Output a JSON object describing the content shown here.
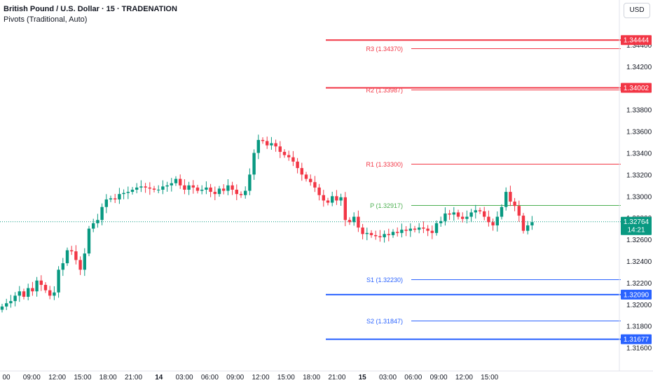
{
  "header": {
    "title": "British Pound / U.S. Dollar · 15 · TRADENATION",
    "indicator": "Pivots (Traditional, Auto)",
    "currency": "USD"
  },
  "colors": {
    "up": "#089981",
    "down": "#f23645",
    "resistance": "#f23645",
    "support": "#2962ff",
    "pivot": "#4caf50"
  },
  "chart_data": {
    "type": "candlestick",
    "instrument": "British Pound / U.S. Dollar",
    "interval": "15",
    "ylim": [
      1.315,
      1.3462
    ],
    "y_ticks": [
      "1.34400",
      "1.34200",
      "1.34000",
      "1.33800",
      "1.33600",
      "1.33400",
      "1.33200",
      "1.33000",
      "1.32800",
      "1.32600",
      "1.32400",
      "1.32200",
      "1.32000",
      "1.31800",
      "1.31600"
    ],
    "x_ticks": [
      "00",
      "09:00",
      "12:00",
      "15:00",
      "18:00",
      "21:00",
      "14",
      "03:00",
      "06:00",
      "09:00",
      "12:00",
      "15:00",
      "18:00",
      "21:00",
      "15",
      "03:00",
      "06:00",
      "09:00",
      "12:00",
      "15:00"
    ],
    "bold_ticks": [
      "14",
      "15"
    ],
    "pivots": [
      {
        "label": "R3",
        "value": "1.34370",
        "y": 1.3437,
        "kind": "resistance"
      },
      {
        "label": "R2",
        "value": "1.33987",
        "y": 1.33987,
        "kind": "resistance"
      },
      {
        "label": "R1",
        "value": "1.33300",
        "y": 1.333,
        "kind": "resistance"
      },
      {
        "label": "P",
        "value": "1.32917",
        "y": 1.32917,
        "kind": "pivot"
      },
      {
        "label": "S1",
        "value": "1.32230",
        "y": 1.3223,
        "kind": "support"
      },
      {
        "label": "S2",
        "value": "1.31847",
        "y": 1.31847,
        "kind": "support"
      }
    ],
    "level_lines": [
      {
        "value": "1.34444",
        "y": 1.34444,
        "kind": "resistance"
      },
      {
        "value": "1.34002",
        "y": 1.34002,
        "kind": "resistance"
      },
      {
        "value": "1.32090",
        "y": 1.3209,
        "kind": "support"
      },
      {
        "value": "1.31677",
        "y": 1.31677,
        "kind": "support"
      }
    ],
    "last_price": {
      "value": "1.32764",
      "countdown": "14:21",
      "y": 1.32764
    },
    "close_path": [
      1.3198,
      1.3201,
      1.3203,
      1.3208,
      1.3212,
      1.3207,
      1.3215,
      1.3212,
      1.3222,
      1.3218,
      1.3213,
      1.3208,
      1.3211,
      1.3232,
      1.3238,
      1.325,
      1.3249,
      1.3241,
      1.3232,
      1.3247,
      1.327,
      1.3275,
      1.3278,
      1.329,
      1.3297,
      1.3298,
      1.3297,
      1.3302,
      1.3303,
      1.3304,
      1.3306,
      1.3308,
      1.3309,
      1.3308,
      1.3307,
      1.3306,
      1.3306,
      1.3309,
      1.331,
      1.3312,
      1.3316,
      1.331,
      1.3306,
      1.331,
      1.3308,
      1.3305,
      1.3306,
      1.3308,
      1.3304,
      1.3302,
      1.3307,
      1.3305,
      1.331,
      1.3306,
      1.3302,
      1.3301,
      1.3305,
      1.332,
      1.334,
      1.3352,
      1.3351,
      1.3347,
      1.3349,
      1.3346,
      1.3341,
      1.3338,
      1.3336,
      1.3332,
      1.3326,
      1.332,
      1.3316,
      1.3313,
      1.3308,
      1.3301,
      1.3296,
      1.3294,
      1.33,
      1.3296,
      1.3299,
      1.3278,
      1.3276,
      1.3281,
      1.3271,
      1.3265,
      1.3266,
      1.3264,
      1.3263,
      1.3262,
      1.3265,
      1.3264,
      1.3267,
      1.3266,
      1.3269,
      1.3268,
      1.327,
      1.3269,
      1.3271,
      1.327,
      1.3268,
      1.3266,
      1.3275,
      1.3277,
      1.3284,
      1.3283,
      1.3285,
      1.3281,
      1.3279,
      1.3281,
      1.3285,
      1.3287,
      1.3286,
      1.3281,
      1.3276,
      1.3273,
      1.3281,
      1.329,
      1.3304,
      1.3295,
      1.3291,
      1.3282,
      1.3268,
      1.3273,
      1.3276
    ]
  }
}
